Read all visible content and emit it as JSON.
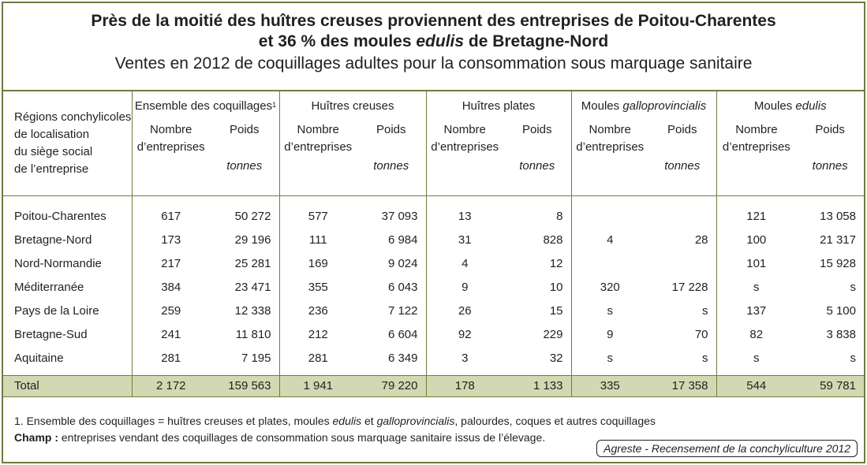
{
  "title": {
    "line1": "Près de la moitié des huîtres creuses proviennent des entreprises de Poitou-Charentes",
    "line2_pre": "et 36 % des moules ",
    "line2_em": "edulis",
    "line2_post": " de Bretagne-Nord",
    "subtitle": "Ventes en 2012 de coquillages adultes pour la consommation sous marquage sanitaire"
  },
  "header": {
    "region_lines": [
      "Régions conchylicoles",
      "de localisation",
      "du siège social",
      "de l’entreprise"
    ],
    "groups": [
      {
        "pre": "Ensemble des coquillages",
        "em": "",
        "sup": "1"
      },
      {
        "pre": "Huîtres creuses",
        "em": "",
        "sup": ""
      },
      {
        "pre": "Huîtres plates",
        "em": "",
        "sup": ""
      },
      {
        "pre": "Moules ",
        "em": "galloprovincialis",
        "sup": ""
      },
      {
        "pre": "Moules ",
        "em": "edulis",
        "sup": ""
      }
    ],
    "nb_line1": "Nombre",
    "nb_line2": "d’entreprises",
    "poids": "Poids",
    "unit": "tonnes"
  },
  "rows": [
    {
      "region": "Poitou-Charentes",
      "v": [
        "617",
        "50 272",
        "577",
        "37 093",
        "13",
        "8",
        "",
        "",
        "121",
        "13 058"
      ]
    },
    {
      "region": "Bretagne-Nord",
      "v": [
        "173",
        "29 196",
        "111",
        "6 984",
        "31",
        "828",
        "4",
        "28",
        "100",
        "21 317"
      ]
    },
    {
      "region": "Nord-Normandie",
      "v": [
        "217",
        "25 281",
        "169",
        "9 024",
        "4",
        "12",
        "",
        "",
        "101",
        "15 928"
      ]
    },
    {
      "region": "Méditerranée",
      "v": [
        "384",
        "23 471",
        "355",
        "6 043",
        "9",
        "10",
        "320",
        "17 228",
        "s",
        "s"
      ]
    },
    {
      "region": "Pays de la Loire",
      "v": [
        "259",
        "12 338",
        "236",
        "7 122",
        "26",
        "15",
        "s",
        "s",
        "137",
        "5 100"
      ]
    },
    {
      "region": "Bretagne-Sud",
      "v": [
        "241",
        "11 810",
        "212",
        "6 604",
        "92",
        "229",
        "9",
        "70",
        "82",
        "3 838"
      ]
    },
    {
      "region": "Aquitaine",
      "v": [
        "281",
        "7 195",
        "281",
        "6 349",
        "3",
        "32",
        "s",
        "s",
        "s",
        "s"
      ]
    }
  ],
  "total": {
    "label": "Total",
    "v": [
      "2 172",
      "159 563",
      "1 941",
      "79 220",
      "178",
      "1 133",
      "335",
      "17 358",
      "544",
      "59 781"
    ]
  },
  "footer": {
    "note_a": "1. Ensemble des coquillages = huîtres creuses et plates, moules ",
    "note_em1": "edulis",
    "note_b": " et ",
    "note_em2": "galloprovincialis",
    "note_c": ", palourdes, coques et autres coquillages",
    "champ_label": "Champ :",
    "champ_text": " entreprises vendant des coquillages de consommation sous marquage sanitaire issus de l’élevage.",
    "source": "Agreste - Recensement de la conchyliculture 2012"
  }
}
